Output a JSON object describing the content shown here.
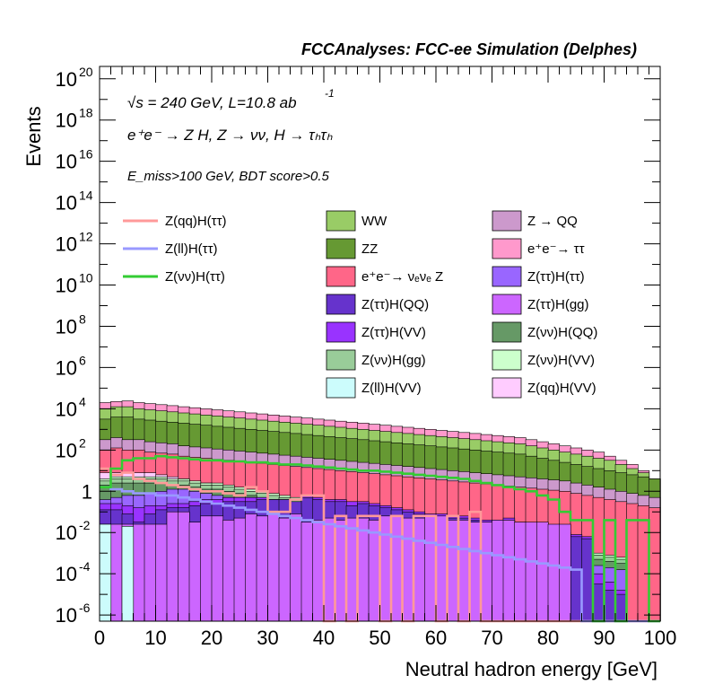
{
  "chart_data": {
    "type": "histogram",
    "header": "FCCAnalyses: FCC-ee Simulation (Delphes)",
    "annotations": {
      "line1": "√s = 240 GeV, L=10.8 ab",
      "line1_sup": "-1",
      "line2": "e⁺e⁻ → Z H, Z → νν, H → τₕτₕ",
      "line3": "E_miss>100 GeV, BDT score>0.5"
    },
    "xlabel": "Neutral hadron energy [GeV]",
    "ylabel": "Events",
    "xlim": [
      0,
      100
    ],
    "ylim_log10": [
      -6.3,
      20.6
    ],
    "y_scale": "log",
    "bin_width": 2,
    "x_ticks": [
      "0",
      "10",
      "20",
      "30",
      "40",
      "50",
      "60",
      "70",
      "80",
      "90",
      "100"
    ],
    "y_ticks": [
      {
        "base": "10",
        "exp": "20",
        "v": 20
      },
      {
        "base": "10",
        "exp": "18",
        "v": 18
      },
      {
        "base": "10",
        "exp": "16",
        "v": 16
      },
      {
        "base": "10",
        "exp": "14",
        "v": 14
      },
      {
        "base": "10",
        "exp": "12",
        "v": 12
      },
      {
        "base": "10",
        "exp": "10",
        "v": 10
      },
      {
        "base": "10",
        "exp": "8",
        "v": 8
      },
      {
        "base": "10",
        "exp": "6",
        "v": 6
      },
      {
        "base": "10",
        "exp": "4",
        "v": 4
      },
      {
        "base": "10",
        "exp": "2",
        "v": 2
      },
      {
        "base": "1",
        "exp": "",
        "v": 0
      },
      {
        "base": "10",
        "exp": "-2",
        "v": -2
      },
      {
        "base": "10",
        "exp": "-4",
        "v": -4
      },
      {
        "base": "10",
        "exp": "-6",
        "v": -6
      }
    ],
    "stack_top_log10": [
      4.3,
      4.35,
      4.38,
      4.3,
      4.25,
      4.2,
      4.15,
      4.1,
      4.05,
      4.0,
      3.95,
      3.9,
      3.85,
      3.8,
      3.75,
      3.7,
      3.65,
      3.6,
      3.55,
      3.5,
      3.45,
      3.4,
      3.35,
      3.3,
      3.25,
      3.2,
      3.15,
      3.1,
      3.05,
      3.0,
      2.95,
      2.9,
      2.85,
      2.8,
      2.75,
      2.7,
      2.65,
      2.6,
      2.5,
      2.4,
      2.3,
      2.2,
      2.1,
      2.0,
      1.9,
      1.7,
      1.5,
      1.3,
      1.0,
      0.6
    ],
    "stack_series": [
      {
        "name": "Z(ll)H(VV)",
        "color": "#ccfcfc",
        "log10": [
          -1.6,
          -6.3,
          -1.7,
          -6.3,
          -6.3,
          -6.3,
          -6.3,
          -6.3,
          -6.3,
          -6.3,
          -6.3,
          -6.3,
          -6.3,
          -6.3,
          -6.3,
          -6.3,
          -6.3,
          -6.3,
          -6.3,
          -6.3,
          -6.3,
          -6.3,
          -6.3,
          -6.3,
          -6.3,
          -6.3,
          -6.3,
          -6.3,
          -6.3,
          -6.3,
          -6.3,
          -6.3,
          -6.3,
          -6.3,
          -6.3,
          -6.3,
          -6.3,
          -6.3,
          -6.3,
          -6.3,
          -6.3,
          -6.3,
          -6.3,
          -6.3,
          -6.3,
          -6.3,
          -6.3,
          -6.3,
          -6.3,
          -6.3
        ]
      },
      {
        "name": "Z(ττ)H(gg)",
        "color": "#cc66ff",
        "log10": [
          -1.6,
          -1.6,
          -1.6,
          -1.6,
          -1.6,
          -1.6,
          -1.0,
          -1.0,
          -1.5,
          -1.2,
          -1.2,
          -1.4,
          -1.3,
          -1.1,
          -1.2,
          -1.1,
          -1.3,
          -1.1,
          -1.5,
          -1.4,
          -1.3,
          -1.4,
          -1.3,
          -1.3,
          -1.4,
          -1.2,
          -1.2,
          -1.3,
          -1.3,
          -1.2,
          -1.2,
          -1.4,
          -1.4,
          -1.5,
          -1.5,
          -1.4,
          -1.4,
          -1.5,
          -1.5,
          -1.5,
          -1.6,
          -1.6,
          -6.3,
          -6.3,
          -6.3,
          -6.3,
          -6.3,
          -6.3,
          -6.3,
          -6.3
        ]
      },
      {
        "name": "Z(ττ)H(QQ)",
        "color": "#6633cc",
        "log10": [
          -0.9,
          -0.9,
          -1.1,
          -1.5,
          -1.1,
          -0.9,
          -0.8,
          -0.8,
          -0.7,
          -0.6,
          -0.6,
          -0.5,
          -0.5,
          -0.5,
          -0.4,
          -0.4,
          -0.4,
          -0.5,
          -0.3,
          -0.4,
          -0.5,
          -0.5,
          -0.7,
          -0.6,
          -0.7,
          -0.8,
          -0.9,
          -1.0,
          -1.1,
          -1.2,
          -1.2,
          -1.3,
          -1.3,
          -1.4,
          -1.5,
          -1.5,
          -1.4,
          -1.6,
          -1.7,
          -1.9,
          -2.0,
          -2.1,
          -2.2,
          -2.3,
          -4.5,
          -4.8,
          -5.0,
          -6.3,
          -6.3,
          -6.3
        ]
      },
      {
        "name": "Z(ττ)H(VV)",
        "color": "#9933ff",
        "log10": [
          -0.6,
          -0.6,
          -0.7,
          -0.8,
          -0.7,
          -0.7,
          -0.6,
          -0.6,
          -0.5,
          -0.4,
          -0.4,
          -0.3,
          -0.3,
          -0.3,
          -0.3,
          -0.4,
          -0.4,
          -0.5,
          -0.2,
          -0.3,
          -0.4,
          -0.4,
          -0.5,
          -0.5,
          -0.6,
          -0.7,
          -0.8,
          -0.9,
          -1.0,
          -1.1,
          -1.1,
          -1.2,
          -1.2,
          -1.3,
          -1.4,
          -1.4,
          -1.3,
          -1.5,
          -1.6,
          -1.8,
          -1.9,
          -2.0,
          -2.1,
          -2.2,
          -4.0,
          -4.4,
          -4.8,
          -6.3,
          -6.3,
          -6.3
        ]
      },
      {
        "name": "Z(ττ)H(ττ)",
        "color": "#9966ff",
        "log10": [
          -0.4,
          -0.3,
          -0.2,
          -0.2,
          -0.1,
          0.0,
          0.1,
          0.1,
          0.0,
          -0.1,
          -0.2,
          -0.3,
          -0.4,
          -0.3,
          -0.5,
          -0.6,
          -0.8,
          -0.9,
          -1.0,
          -1.1,
          -1.2,
          -1.3,
          -1.4,
          -1.5,
          -1.6,
          -1.7,
          -1.8,
          -1.9,
          -2.0,
          -2.1,
          -2.2,
          -2.3,
          -2.4,
          -2.5,
          -2.6,
          -2.7,
          -2.8,
          -2.9,
          -3.0,
          -3.1,
          -3.2,
          -3.3,
          -3.4,
          -3.5,
          -3.6,
          -3.7,
          -3.8,
          -6.3,
          -6.3,
          -6.3
        ]
      },
      {
        "name": "Z(νν)H(QQ)",
        "color": "#669966",
        "log10": [
          0.3,
          0.4,
          0.4,
          0.4,
          0.4,
          0.4,
          0.3,
          0.3,
          0.2,
          0.1,
          0.1,
          0.0,
          -0.1,
          -0.2,
          -0.3,
          -0.4,
          -0.5,
          -0.6,
          -0.7,
          -0.8,
          -0.9,
          -1.0,
          -1.1,
          -1.2,
          -1.3,
          -1.4,
          -1.5,
          -1.6,
          -1.7,
          -1.8,
          -1.9,
          -2.0,
          -2.1,
          -2.2,
          -2.3,
          -2.4,
          -2.5,
          -2.6,
          -2.7,
          -2.8,
          -2.9,
          -3.0,
          -3.1,
          -3.2,
          -3.3,
          -3.4,
          -3.5,
          -6.3,
          -6.3,
          -6.3
        ]
      },
      {
        "name": "Z(νν)H(gg)",
        "color": "#99cc99",
        "log10": [
          0.5,
          0.6,
          0.6,
          0.6,
          0.6,
          0.6,
          0.5,
          0.5,
          0.4,
          0.3,
          0.3,
          0.2,
          0.1,
          0.0,
          -0.1,
          -0.2,
          -0.3,
          -0.4,
          -0.5,
          -0.6,
          -0.7,
          -0.8,
          -0.9,
          -1.0,
          -1.1,
          -1.2,
          -1.3,
          -1.4,
          -1.5,
          -1.6,
          -1.7,
          -1.8,
          -1.9,
          -2.0,
          -2.1,
          -2.2,
          -2.3,
          -2.4,
          -2.5,
          -2.6,
          -2.7,
          -2.8,
          -2.9,
          -3.0,
          -3.1,
          -3.2,
          -3.3,
          -6.3,
          -6.3,
          -6.3
        ]
      },
      {
        "name": "Z(νν)H(VV)",
        "color": "#ccffcc",
        "log10": [
          0.6,
          0.7,
          0.7,
          0.7,
          0.7,
          0.7,
          0.6,
          0.6,
          0.5,
          0.4,
          0.4,
          0.3,
          0.2,
          0.1,
          0.0,
          -0.1,
          -0.2,
          -0.3,
          -0.4,
          -0.5,
          -0.6,
          -0.7,
          -0.8,
          -0.9,
          -1.0,
          -1.1,
          -1.2,
          -1.3,
          -1.4,
          -1.5,
          -1.6,
          -1.7,
          -1.8,
          -1.9,
          -2.0,
          -2.1,
          -2.2,
          -2.3,
          -2.4,
          -2.5,
          -2.6,
          -2.7,
          -2.8,
          -2.9,
          -3.0,
          -3.1,
          -3.2,
          -6.3,
          -6.3,
          -6.3
        ]
      },
      {
        "name": "Z(qq)H(VV)",
        "color": "#ffccff",
        "log10": [
          0.9,
          0.9,
          0.9,
          0.9,
          0.9,
          0.8,
          0.7,
          0.6,
          0.5,
          0.4,
          0.3,
          0.2,
          0.1,
          0.0,
          -0.1,
          -0.2,
          -0.3,
          -0.4,
          -0.5,
          -0.6,
          -0.7,
          -0.8,
          -0.9,
          -1.0,
          -1.1,
          -1.2,
          -1.3,
          -1.4,
          -1.5,
          -1.6,
          -1.7,
          -1.8,
          -1.9,
          -2.0,
          -2.1,
          -2.2,
          -2.3,
          -2.4,
          -2.5,
          -2.6,
          -2.7,
          -2.8,
          -2.9,
          -3.0,
          -3.1,
          -3.2,
          -3.3,
          -6.3,
          -6.3,
          -6.3
        ]
      },
      {
        "name": "e⁺e⁻→ νₑνₑ Z",
        "color": "#ff6688",
        "log10": [
          2.0,
          2.1,
          2.0,
          2.0,
          1.9,
          1.85,
          1.8,
          1.7,
          1.65,
          1.6,
          1.55,
          1.5,
          1.45,
          1.4,
          1.35,
          1.3,
          1.25,
          1.2,
          1.15,
          1.1,
          1.05,
          1.0,
          0.95,
          0.9,
          0.85,
          0.8,
          0.75,
          0.7,
          0.65,
          0.6,
          0.55,
          0.5,
          0.45,
          0.4,
          0.35,
          0.3,
          0.25,
          0.2,
          0.15,
          0.1,
          0.05,
          0.0,
          -0.1,
          -0.2,
          -0.3,
          -0.4,
          -0.5,
          -0.6,
          -0.7,
          -0.8
        ]
      },
      {
        "name": "Z → QQ",
        "color": "#cc99cc",
        "log10": [
          2.5,
          2.6,
          2.5,
          2.5,
          2.4,
          2.35,
          2.3,
          2.2,
          2.15,
          2.1,
          2.05,
          2.0,
          1.95,
          1.9,
          1.85,
          1.8,
          1.75,
          1.7,
          1.65,
          1.6,
          1.55,
          1.5,
          1.45,
          1.4,
          1.35,
          1.3,
          1.25,
          1.2,
          1.15,
          1.1,
          1.05,
          1.0,
          0.95,
          0.9,
          0.85,
          0.8,
          0.75,
          0.7,
          0.65,
          0.6,
          0.55,
          0.5,
          0.4,
          0.3,
          0.2,
          0.1,
          0.0,
          -0.1,
          -0.2,
          -0.3
        ]
      },
      {
        "name": "ZZ",
        "color": "#669933",
        "log10": [
          3.5,
          3.6,
          3.6,
          3.5,
          3.45,
          3.4,
          3.35,
          3.3,
          3.25,
          3.2,
          3.15,
          3.1,
          3.05,
          3.0,
          2.95,
          2.9,
          2.85,
          2.8,
          2.75,
          2.7,
          2.65,
          2.6,
          2.55,
          2.5,
          2.45,
          2.4,
          2.35,
          2.3,
          2.25,
          2.2,
          2.15,
          2.1,
          2.05,
          2.0,
          1.95,
          1.9,
          1.85,
          1.8,
          1.7,
          1.6,
          1.5,
          1.4,
          1.3,
          1.2,
          1.1,
          1.0,
          0.9,
          0.8,
          0.7,
          0.6
        ]
      },
      {
        "name": "WW",
        "color": "#99cc66",
        "log10": [
          4.0,
          4.1,
          4.1,
          4.0,
          3.95,
          3.9,
          3.85,
          3.8,
          3.75,
          3.7,
          3.65,
          3.6,
          3.55,
          3.5,
          3.45,
          3.4,
          3.35,
          3.3,
          3.25,
          3.2,
          3.15,
          3.1,
          3.05,
          3.0,
          2.95,
          2.9,
          2.85,
          2.8,
          2.75,
          2.7,
          2.65,
          2.6,
          2.55,
          2.5,
          2.45,
          2.4,
          2.35,
          2.3,
          2.2,
          2.1,
          2.0,
          1.9,
          1.8,
          1.7,
          1.6,
          1.5,
          1.3,
          1.1,
          0.9,
          0.6
        ]
      },
      {
        "name": "e⁺e⁻→ ττ",
        "color": "#ff99cc",
        "log10": [
          4.3,
          4.35,
          4.38,
          4.3,
          4.25,
          4.2,
          4.15,
          4.1,
          4.05,
          4.0,
          3.95,
          3.9,
          3.85,
          3.8,
          3.75,
          3.7,
          3.65,
          3.6,
          3.55,
          3.5,
          3.45,
          3.4,
          3.35,
          3.3,
          3.25,
          3.2,
          3.15,
          3.1,
          3.05,
          3.0,
          2.95,
          2.9,
          2.85,
          2.8,
          2.75,
          2.7,
          2.65,
          2.6,
          2.5,
          2.4,
          2.3,
          2.2,
          2.1,
          2.0,
          1.9,
          1.7,
          1.5,
          1.3,
          1.0,
          0.6
        ]
      }
    ],
    "signal_series": [
      {
        "name": "Z(qq)H(ττ)",
        "color": "#ff9999",
        "log10": [
          1.1,
          0.8,
          0.9,
          0.6,
          0.5,
          0.4,
          0.3,
          0.2,
          0.1,
          0.0,
          0.0,
          -0.1,
          -0.2,
          0.2,
          0.0,
          -1.0,
          -1.0,
          -0.4,
          -0.2,
          -0.2,
          -6.3,
          -1.2,
          -6.3,
          -1.2,
          -1.2,
          -6.3,
          -1.2,
          -6.3,
          -1.2,
          -1.2,
          -6.3,
          -1.2,
          -6.3,
          -1.0,
          -6.3,
          -6.3,
          -6.3,
          -6.3,
          -6.3,
          -6.3,
          -6.3,
          -6.3,
          -6.3,
          -6.3,
          -6.3,
          -6.3,
          -6.3,
          -6.3,
          -6.3,
          -6.3
        ]
      },
      {
        "name": "Z(ll)H(ττ)",
        "color": "#9999ff",
        "log10": [
          0.2,
          0.1,
          0.0,
          -0.1,
          -0.1,
          -0.2,
          -0.2,
          -0.3,
          -0.4,
          -0.5,
          -0.6,
          -0.7,
          -0.8,
          -0.9,
          -1.0,
          -1.1,
          -1.2,
          -1.3,
          -1.4,
          -1.5,
          -1.6,
          -1.7,
          -1.8,
          -1.9,
          -2.0,
          -2.1,
          -2.2,
          -2.3,
          -2.4,
          -2.5,
          -2.6,
          -2.7,
          -2.8,
          -2.9,
          -3.0,
          -3.1,
          -3.2,
          -3.3,
          -3.4,
          -3.5,
          -3.6,
          -3.7,
          -3.8,
          -6.3,
          -6.3,
          -6.3,
          -6.3,
          -6.3,
          -6.3,
          -6.3
        ]
      },
      {
        "name": "Z(νν)H(ττ)",
        "color": "#33cc33",
        "log10": [
          0.2,
          1.1,
          1.5,
          1.6,
          1.6,
          1.7,
          1.65,
          1.6,
          1.55,
          1.5,
          1.5,
          1.45,
          1.45,
          1.4,
          1.4,
          1.35,
          1.3,
          1.3,
          1.25,
          1.2,
          1.15,
          1.1,
          1.05,
          1.0,
          1.0,
          0.95,
          0.9,
          0.85,
          0.8,
          0.75,
          0.7,
          0.65,
          0.6,
          0.5,
          0.4,
          0.3,
          0.2,
          0.1,
          0.0,
          -0.2,
          -0.4,
          -1.0,
          -1.4,
          -1.4,
          -6.3,
          -1.4,
          -6.3,
          -1.4,
          -1.4,
          -6.3
        ]
      }
    ],
    "legend": {
      "col1": [
        "Z(qq)H(ττ)",
        "Z(ll)H(ττ)",
        "Z(νν)H(ττ)"
      ],
      "col2": [
        "WW",
        "ZZ",
        "e⁺e⁻→ νₑνₑ Z",
        "Z(ττ)H(QQ)",
        "Z(ττ)H(VV)",
        "Z(νν)H(gg)",
        "Z(ll)H(VV)"
      ],
      "col3": [
        "Z → QQ",
        "e⁺e⁻→ ττ",
        "Z(ττ)H(ττ)",
        "Z(ττ)H(gg)",
        "Z(νν)H(QQ)",
        "Z(νν)H(VV)",
        "Z(qq)H(VV)"
      ]
    }
  }
}
